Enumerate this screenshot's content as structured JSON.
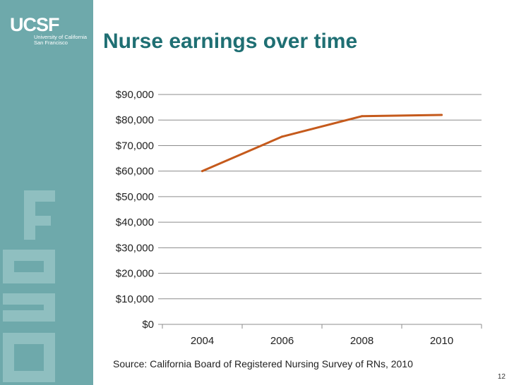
{
  "logo": {
    "wordmark": "UCSF",
    "line1": "University of California",
    "line2": "San Francisco"
  },
  "slide": {
    "title": "Nurse earnings over time",
    "source": "Source: California Board of Registered Nursing Survey of RNs, 2010",
    "page_number": "12"
  },
  "colors": {
    "sidebar": "#6ea9ab",
    "title": "#1f6f73",
    "line": "#c55a1c",
    "grid": "#8c8c8c"
  },
  "chart_data": {
    "type": "line",
    "categories": [
      "2004",
      "2006",
      "2008",
      "2010"
    ],
    "series": [
      {
        "values": [
          60000,
          73500,
          81500,
          82000
        ]
      }
    ],
    "title": "",
    "xlabel": "",
    "ylabel": "",
    "ylim": [
      0,
      90000
    ],
    "yticks": [
      0,
      10000,
      20000,
      30000,
      40000,
      50000,
      60000,
      70000,
      80000,
      90000
    ],
    "ytick_labels": [
      "$0",
      "$10,000",
      "$20,000",
      "$30,000",
      "$40,000",
      "$50,000",
      "$60,000",
      "$70,000",
      "$80,000",
      "$90,000"
    ],
    "grid": true,
    "legend": "none"
  }
}
